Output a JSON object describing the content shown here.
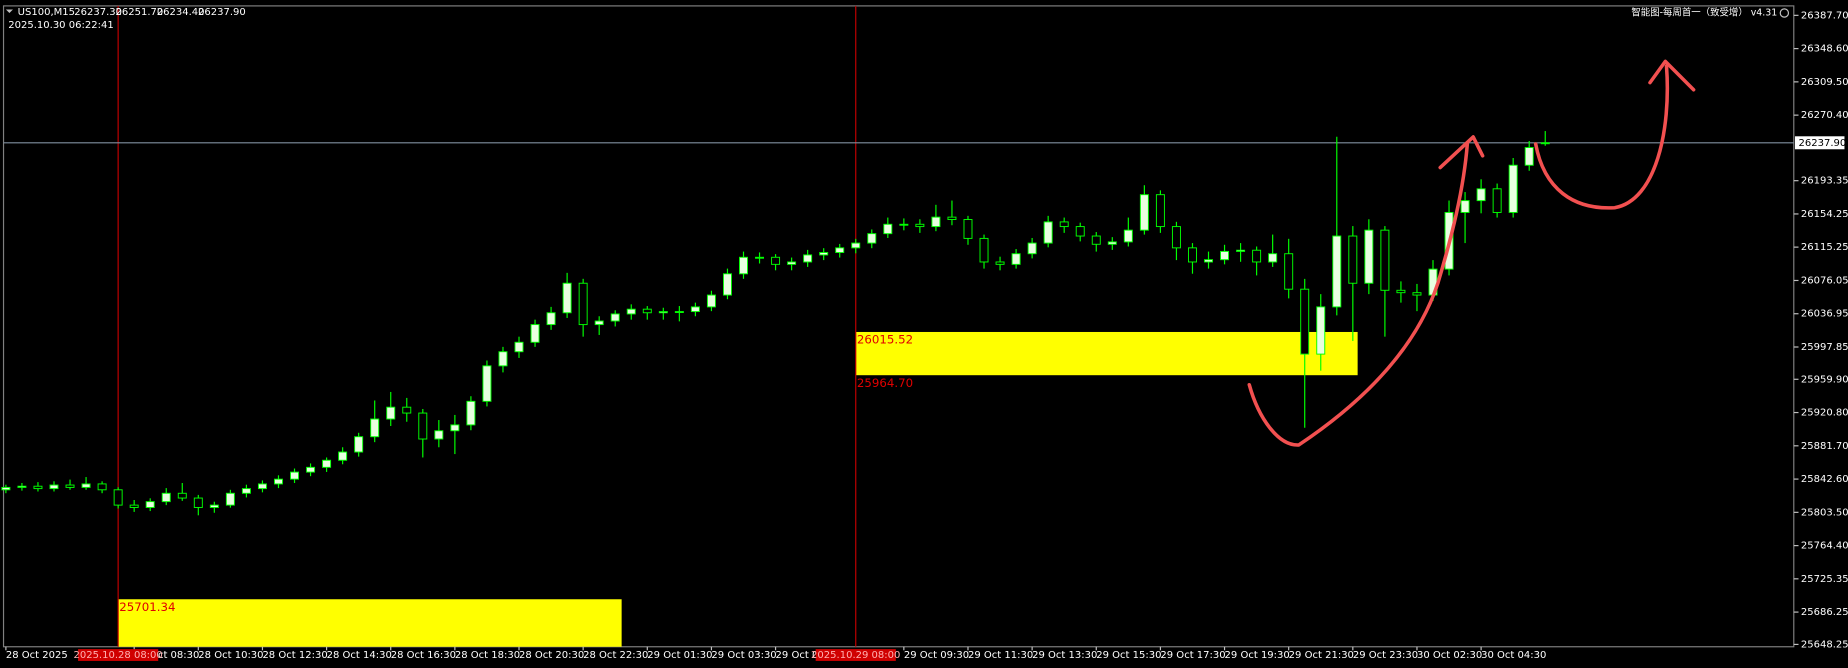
{
  "chart_data": {
    "type": "candlestick",
    "symbol": "US100,M15",
    "ohlc_labels": [
      "26237.30",
      "26251.70",
      "26234.40",
      "26237.90"
    ],
    "timestamp": "2025.10.30 06:22:41",
    "indicator": "智能图-每周首一（致受增） v4.31",
    "up_color": "#e8ffe0",
    "down_color": "#000000",
    "wick_color": "#00ff00",
    "ylim": [
      25645.5,
      26398.8
    ],
    "xlim": [
      0,
      111.5
    ],
    "yticks": [
      {
        "value": 26387.7,
        "label": "26387.70"
      },
      {
        "value": 26348.6,
        "label": "26348.60"
      },
      {
        "value": 26309.5,
        "label": "26309.50"
      },
      {
        "value": 26270.4,
        "label": "26270.40"
      },
      26193.35,
      26154.25,
      26115.25,
      26076.05,
      26036.95,
      25997.85,
      {
        "value": 25959.9,
        "label": "25959.90"
      },
      {
        "value": 25920.8,
        "label": "25920.80"
      },
      {
        "value": 25881.7,
        "label": "25881.70"
      },
      {
        "value": 25842.6,
        "label": "25842.60"
      },
      {
        "value": 25803.5,
        "label": "25803.50"
      },
      {
        "value": 25764.4,
        "label": "25764.40"
      },
      25725.35,
      25686.25,
      25648.25
    ],
    "xticks": [
      {
        "value": 0,
        "label": "28 Oct 2025"
      },
      {
        "value": 8,
        "label": "28 Oct 08:30"
      },
      {
        "value": 12,
        "label": "28 Oct 10:30"
      },
      {
        "value": 16,
        "label": "28 Oct 12:30"
      },
      {
        "value": 20,
        "label": "28 Oct 14:30"
      },
      {
        "value": 24,
        "label": "28 Oct 16:30"
      },
      {
        "value": 28,
        "label": "28 Oct 18:30"
      },
      {
        "value": 32,
        "label": "28 Oct 20:30"
      },
      {
        "value": 36,
        "label": "28 Oct 22:30"
      },
      {
        "value": 40,
        "label": "29 Oct 01:30"
      },
      {
        "value": 44,
        "label": "29 Oct 03:30"
      },
      {
        "value": 48,
        "label": "29 Oct 05:30"
      },
      {
        "value": 56,
        "label": "29 Oct 09:30"
      },
      {
        "value": 60,
        "label": "29 Oct 11:30"
      },
      {
        "value": 64,
        "label": "29 Oct 13:30"
      },
      {
        "value": 68,
        "label": "29 Oct 15:30"
      },
      {
        "value": 72,
        "label": "29 Oct 17:30"
      },
      {
        "value": 76,
        "label": "29 Oct 19:30"
      },
      {
        "value": 80,
        "label": "29 Oct 21:30"
      },
      {
        "value": 84,
        "label": "29 Oct 23:30"
      },
      {
        "value": 88,
        "label": "30 Oct 02:30"
      },
      {
        "value": 92,
        "label": "30 Oct 04:30"
      }
    ],
    "last_price": {
      "value": 26237.9,
      "label": "26237.90"
    },
    "markers": [
      {
        "at": 7,
        "label": "2025.10.28 08:00"
      },
      {
        "at": 53,
        "label": "2025.10.29 08:00"
      }
    ],
    "zones": [
      {
        "from": 53,
        "to": 84.3,
        "high": 26015.52,
        "low": {
          "value": 25964.7,
          "label": "25964.70"
        },
        "color": "#ffff00"
      },
      {
        "from": 7,
        "to": 38.4,
        "high": 25701.34,
        "color": "#ffff00"
      }
    ],
    "candles": [
      [
        25830.0,
        25836.0,
        25826.0,
        25832.8
      ],
      [
        25832.8,
        25838.0,
        25829.0,
        25834.2
      ],
      [
        25834.2,
        25839.0,
        25828.0,
        25831.4
      ],
      [
        25831.4,
        25840.0,
        25828.0,
        25835.6
      ],
      [
        25835.6,
        25842.0,
        25830.0,
        25832.8
      ],
      [
        25832.8,
        25845.0,
        25830.0,
        25836.9
      ],
      [
        25836.9,
        25840.0,
        25826.0,
        25830.0
      ],
      [
        25830.0,
        25833.0,
        25808.0,
        25812.0
      ],
      [
        25812.0,
        25818.0,
        25804.0,
        25809.2
      ],
      [
        25809.2,
        25820.0,
        25805.0,
        25816.1
      ],
      [
        25816.1,
        25832.0,
        25812.0,
        25825.9
      ],
      [
        25825.9,
        25838.0,
        25817.0,
        25820.3
      ],
      [
        25820.3,
        25824.0,
        25800.0,
        25809.2
      ],
      [
        25809.2,
        25816.0,
        25803.0,
        25812.0
      ],
      [
        25812.0,
        25830.0,
        25809.0,
        25825.9
      ],
      [
        25825.9,
        25836.0,
        25821.0,
        25831.4
      ],
      [
        25831.4,
        25841.0,
        25827.0,
        25836.9
      ],
      [
        25836.9,
        25847.0,
        25832.0,
        25842.5
      ],
      [
        25842.5,
        25855.0,
        25838.0,
        25850.8
      ],
      [
        25850.8,
        25861.0,
        25846.0,
        25856.4
      ],
      [
        25856.4,
        25868.0,
        25851.0,
        25864.7
      ],
      [
        25864.7,
        25880.0,
        25860.0,
        25874.4
      ],
      [
        25874.4,
        25897.0,
        25869.0,
        25892.4
      ],
      [
        25892.4,
        25935.0,
        25886.0,
        25913.2
      ],
      [
        25913.2,
        25945.0,
        25905.0,
        25927.1
      ],
      [
        25927.1,
        25938.0,
        25910.0,
        25920.2
      ],
      [
        25920.2,
        25925.0,
        25868.0,
        25889.7
      ],
      [
        25889.7,
        25912.0,
        25880.0,
        25899.4
      ],
      [
        25899.4,
        25918.0,
        25872.0,
        25906.3
      ],
      [
        25906.3,
        25940.0,
        25900.0,
        25934.0
      ],
      [
        25934.0,
        25982.0,
        25928.0,
        25975.7
      ],
      [
        25975.7,
        25998.0,
        25968.0,
        25992.3
      ],
      [
        25992.3,
        26010.0,
        25985.0,
        26003.4
      ],
      [
        26003.4,
        26030.0,
        25998.0,
        26024.2
      ],
      [
        26024.2,
        26045.0,
        26018.0,
        26038.1
      ],
      [
        26038.1,
        26085.0,
        26032.0,
        26072.8
      ],
      [
        26072.8,
        26078.0,
        26010.0,
        26024.2
      ],
      [
        26024.2,
        26034.0,
        26012.0,
        26028.4
      ],
      [
        26028.4,
        26041.0,
        26022.0,
        26036.7
      ],
      [
        26036.7,
        26048.0,
        26030.0,
        26042.3
      ],
      [
        26042.3,
        26046.0,
        26030.0,
        26038.1
      ],
      [
        26038.1,
        26044.0,
        26030.0,
        26039.5
      ],
      [
        26039.5,
        26046.0,
        26028.0,
        26039.5
      ],
      [
        26039.5,
        26050.0,
        26034.0,
        26045.0
      ],
      [
        26045.0,
        26064.0,
        26040.0,
        26058.9
      ],
      [
        26058.9,
        26090.0,
        26054.0,
        26083.9
      ],
      [
        26083.9,
        26110.0,
        26078.0,
        26103.3
      ],
      [
        26103.3,
        26109.0,
        26096.0,
        26103.3
      ],
      [
        26103.3,
        26107.0,
        26088.0,
        26095.0
      ],
      [
        26095.0,
        26103.0,
        26088.0,
        26097.8
      ],
      [
        26097.8,
        26112.0,
        26092.0,
        26106.1
      ],
      [
        26106.1,
        26114.0,
        26100.0,
        26108.9
      ],
      [
        26108.9,
        26119.0,
        26103.0,
        26114.4
      ],
      [
        26114.4,
        26125.0,
        26108.0,
        26120.0
      ],
      [
        26120.0,
        26136.0,
        26114.0,
        26131.1
      ],
      [
        26131.1,
        26150.0,
        26126.0,
        26142.1
      ],
      [
        26142.1,
        26149.0,
        26135.0,
        26142.1
      ],
      [
        26142.1,
        26148.0,
        26132.0,
        26139.4
      ],
      [
        26139.4,
        26165.0,
        26134.0,
        26150.5
      ],
      [
        26150.5,
        26170.0,
        26141.0,
        26147.7
      ],
      [
        26147.7,
        26152.0,
        26118.0,
        26125.5
      ],
      [
        26125.5,
        26130.0,
        26090.0,
        26097.8
      ],
      [
        26097.8,
        26104.0,
        26088.0,
        26095.0
      ],
      [
        26095.0,
        26113.0,
        26090.0,
        26107.5
      ],
      [
        26107.5,
        26126.0,
        26102.0,
        26120.0
      ],
      [
        26120.0,
        26152.0,
        26115.0,
        26144.9
      ],
      [
        26144.9,
        26150.0,
        26132.0,
        26139.4
      ],
      [
        26139.4,
        26144.0,
        26122.0,
        26128.3
      ],
      [
        26128.3,
        26133.0,
        26110.0,
        26118.6
      ],
      [
        26118.6,
        26127.0,
        26112.0,
        26121.4
      ],
      [
        26121.4,
        26150.0,
        26116.0,
        26135.2
      ],
      [
        26135.2,
        26188.0,
        26130.0,
        26176.9
      ],
      [
        26176.9,
        26182.0,
        26132.0,
        26139.4
      ],
      [
        26139.4,
        26145.0,
        26100.0,
        26114.4
      ],
      [
        26114.4,
        26120.0,
        26084.0,
        26097.8
      ],
      [
        26097.8,
        26110.0,
        26090.0,
        26100.5
      ],
      [
        26100.5,
        26118.0,
        26095.0,
        26110.2
      ],
      [
        26110.2,
        26120.0,
        26098.0,
        26111.6
      ],
      [
        26111.6,
        26116.0,
        26082.0,
        26097.8
      ],
      [
        26097.8,
        26130.0,
        26092.0,
        26107.5
      ],
      [
        26107.5,
        26125.0,
        26055.0,
        26065.8
      ],
      [
        26065.8,
        26078.0,
        25903.0,
        25989.5
      ],
      [
        25989.5,
        26060.0,
        25970.0,
        26045.0
      ],
      [
        26045.0,
        26245.0,
        26035.0,
        26128.3
      ],
      [
        26128.3,
        26140.0,
        26005.0,
        26072.8
      ],
      [
        26072.8,
        26148.0,
        26060.0,
        26135.2
      ],
      [
        26135.2,
        26140.0,
        26010.0,
        26064.5
      ],
      [
        26064.5,
        26075.0,
        26050.0,
        26061.7
      ],
      [
        26061.7,
        26072.0,
        26040.0,
        26058.9
      ],
      [
        26058.9,
        26100.0,
        26052.0,
        26089.4
      ],
      [
        26089.4,
        26170.0,
        26082.0,
        26156.0
      ],
      [
        26156.0,
        26180.0,
        26120.0,
        26169.9
      ],
      [
        26169.9,
        26195.0,
        26155.0,
        26183.8
      ],
      [
        26183.8,
        26190.0,
        26150.0,
        26156.0
      ],
      [
        26156.0,
        26220.0,
        26150.0,
        26211.5
      ],
      [
        26211.5,
        26240.0,
        26205.0,
        26232.3
      ],
      [
        26237.3,
        26251.7,
        26234.4,
        26237.9
      ]
    ]
  }
}
